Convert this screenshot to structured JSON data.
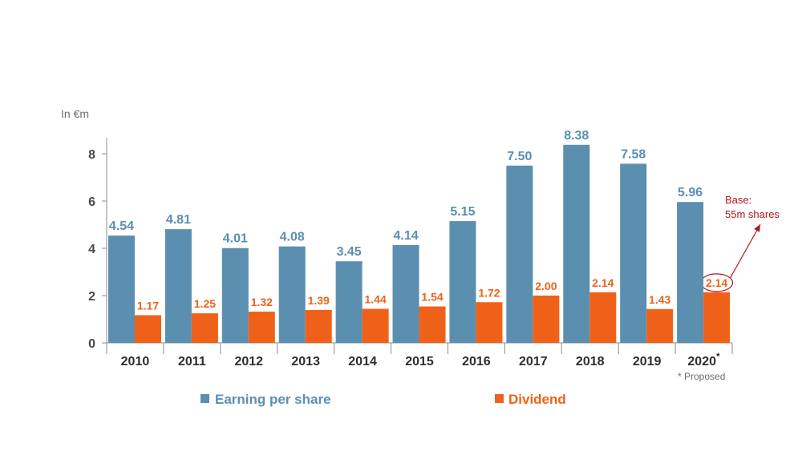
{
  "colors": {
    "eps": "#5b8fb0",
    "dividend": "#ef6119",
    "annotation": "#b1171c",
    "axis": "#8c8c8c"
  },
  "chart_data": {
    "type": "bar",
    "title": "",
    "unit_label": "In €m",
    "categories": [
      "2010",
      "2011",
      "2012",
      "2013",
      "2014",
      "2015",
      "2016",
      "2017",
      "2018",
      "2019",
      "2020"
    ],
    "category_marker": {
      "index": 10,
      "text": "*"
    },
    "series": [
      {
        "name": "Earning per share",
        "values": [
          4.54,
          4.81,
          4.01,
          4.08,
          3.45,
          4.14,
          5.15,
          7.5,
          8.38,
          7.58,
          5.96
        ]
      },
      {
        "name": "Dividend",
        "values": [
          1.17,
          1.25,
          1.32,
          1.39,
          1.44,
          1.54,
          1.72,
          2.0,
          2.14,
          1.43,
          2.14
        ]
      }
    ],
    "ylim": [
      0,
      8.6
    ],
    "yticks": [
      0,
      2,
      4,
      6,
      8
    ],
    "grid": false,
    "legend_position": "bottom",
    "footnote": "* Proposed",
    "annotation": {
      "lines": [
        "Base:",
        "55m shares"
      ],
      "target_series": "Dividend",
      "target_index": 10
    }
  }
}
